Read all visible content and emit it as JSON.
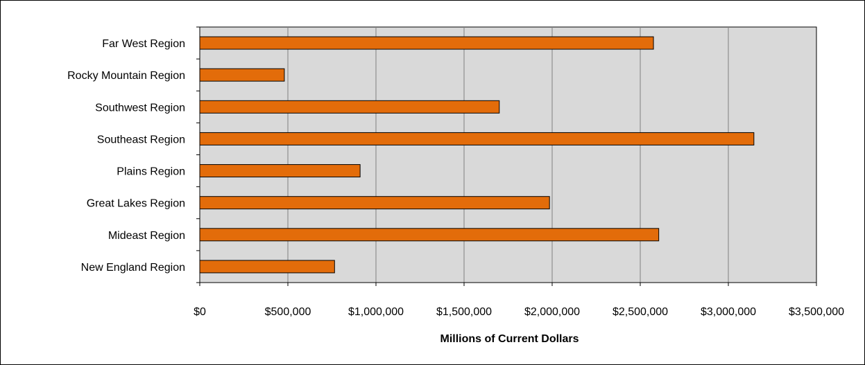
{
  "chart_data": {
    "type": "bar",
    "orientation": "horizontal",
    "categories": [
      "Far West Region",
      "Rocky Mountain Region",
      "Southwest Region",
      "Southeast Region",
      "Plains Region",
      "Great Lakes Region",
      "Mideast Region",
      "New England Region"
    ],
    "values": [
      2575000,
      480000,
      1700000,
      3145000,
      910000,
      1985000,
      2605000,
      765000
    ],
    "xlabel": "Millions of Current Dollars",
    "ylabel": "",
    "xlim": [
      0,
      3500000
    ],
    "x_ticks": [
      0,
      500000,
      1000000,
      1500000,
      2000000,
      2500000,
      3000000,
      3500000
    ],
    "x_tick_labels": [
      "$0",
      "$500,000",
      "$1,000,000",
      "$1,500,000",
      "$2,000,000",
      "$2,500,000",
      "$3,000,000",
      "$3,500,000"
    ],
    "grid": "vertical",
    "legend": "none",
    "colors": {
      "bar_fill": "#E36C0A",
      "bar_stroke": "#000000",
      "plot_background": "#D9D9D9",
      "grid": "#808080"
    }
  }
}
